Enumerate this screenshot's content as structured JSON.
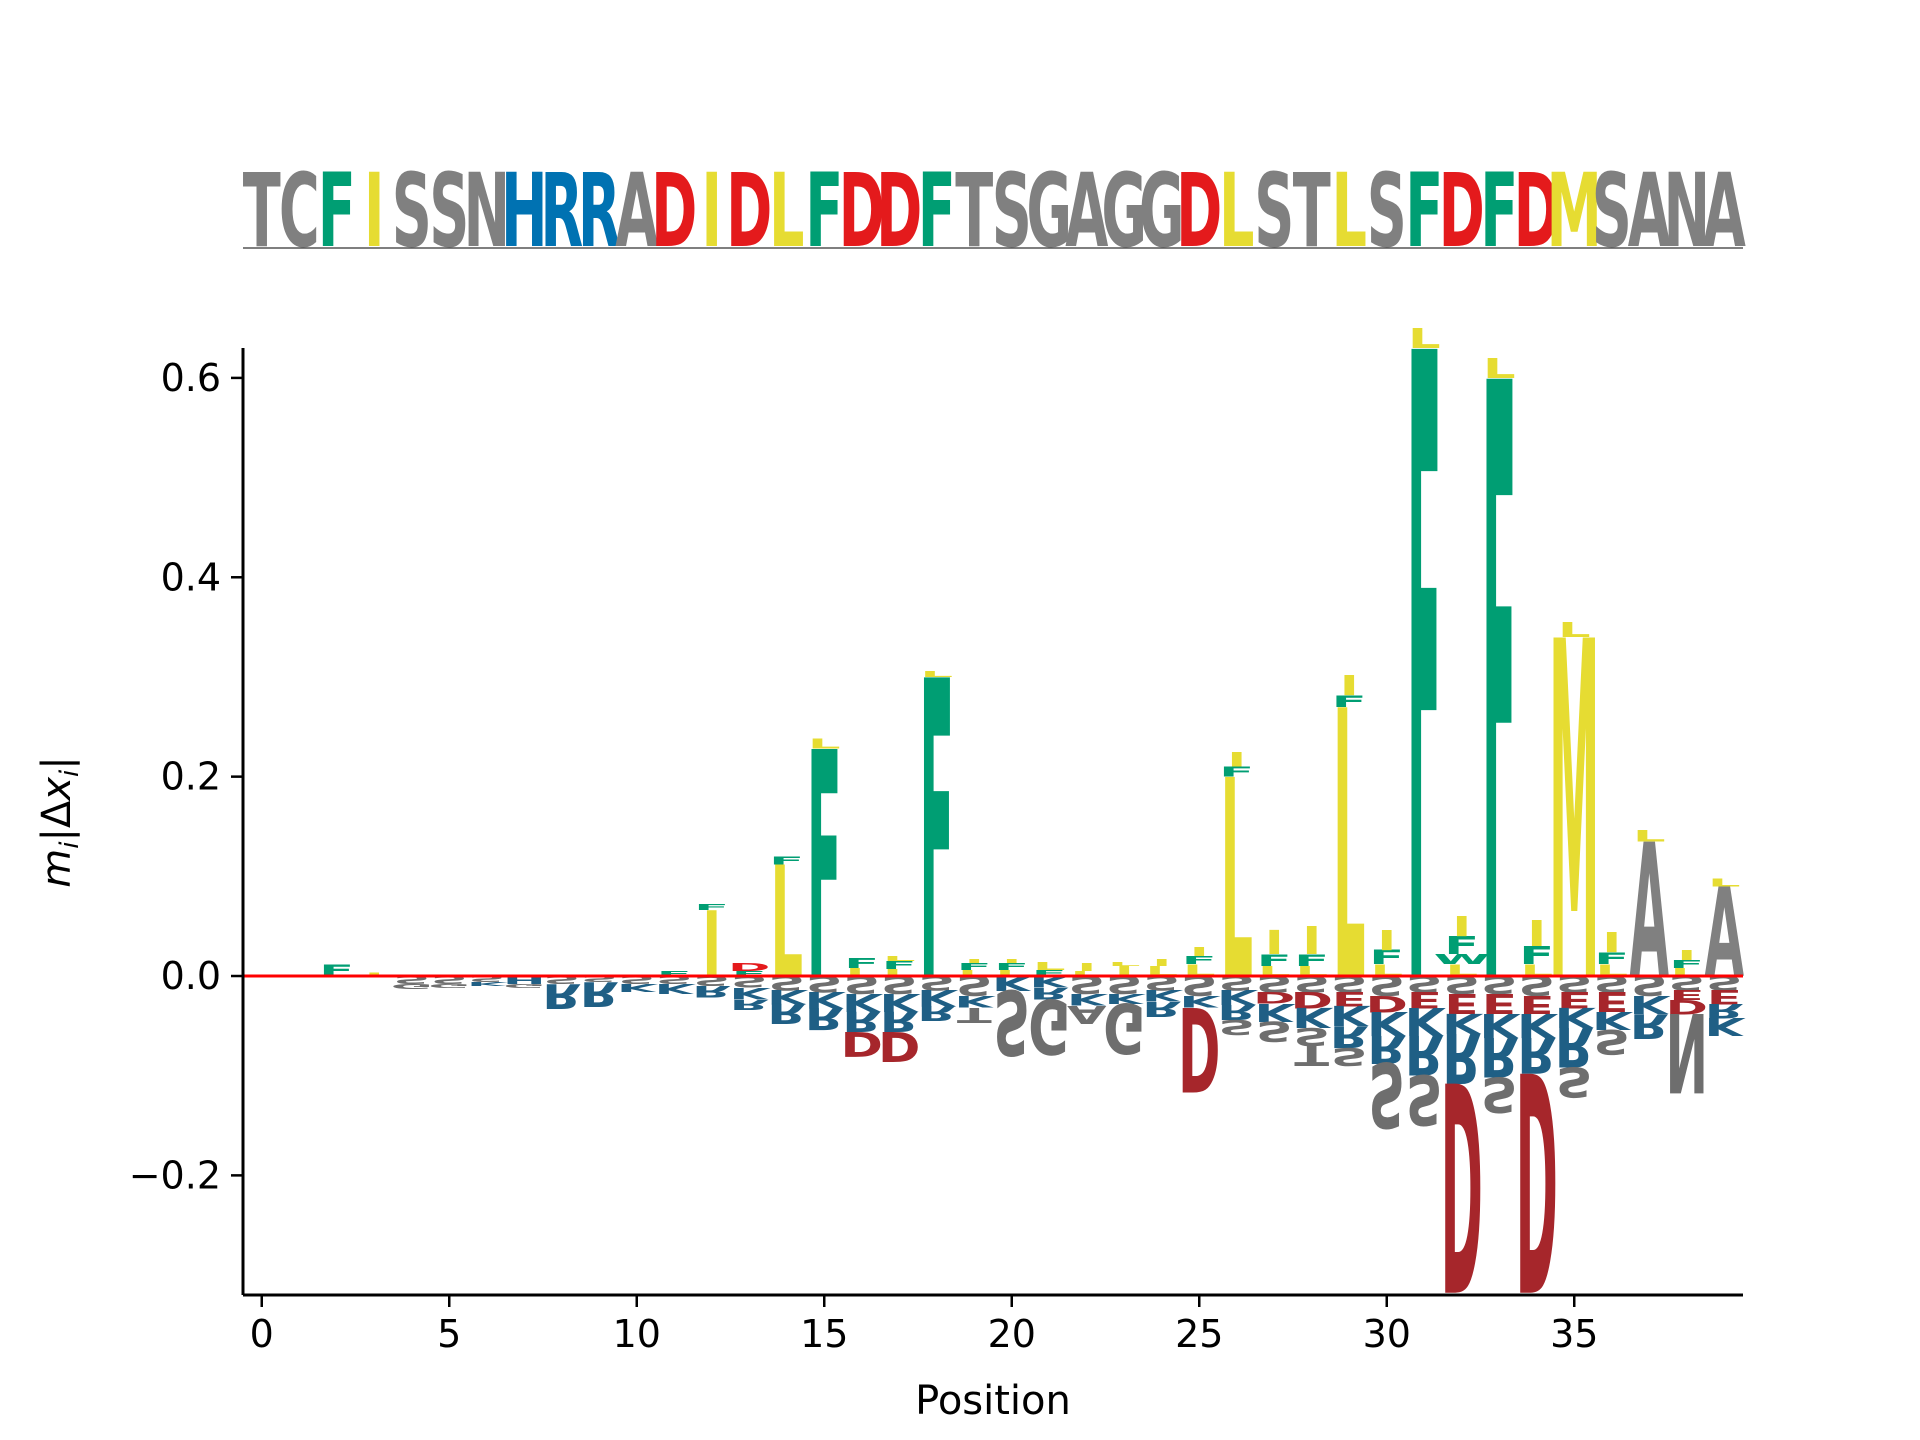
{
  "sequence": "TCFISSNHRRADIDLFDDFTSGAGGDLSTLSFDFDMSANA",
  "colors": {
    "hydrophobic_green": "#009e73",
    "hydrophobic_yellow": "#e6dc32",
    "acidic_red": "#e41a1c",
    "acidic_dark": "#a6262b",
    "basic_blue": "#0072b2",
    "basic_dark": "#1f5f85",
    "neutral_gray": "#808080",
    "neutral_dark": "#6e6e6e",
    "baseline": "#ff0000"
  },
  "letter_colors": {
    "F": "#009e73",
    "W": "#009e73",
    "Y": "#009e73",
    "I": "#e6dc32",
    "L": "#e6dc32",
    "M": "#e6dc32",
    "V": "#e6dc32",
    "D": "#e41a1c",
    "E": "#e41a1c",
    "H": "#0072b2",
    "K": "#0072b2",
    "R": "#0072b2"
  },
  "chart_data": {
    "type": "logo",
    "xlabel": "Position",
    "ylabel": "m_i|Δx_i|",
    "xlim": [
      -0.5,
      39.5
    ],
    "ylim": [
      -0.32,
      0.63
    ],
    "xticks": [
      0,
      5,
      10,
      15,
      20,
      25,
      30,
      35
    ],
    "yticks": [
      -0.2,
      0.0,
      0.2,
      0.4,
      0.6
    ],
    "ytick_labels": [
      "−0.2",
      "0.0",
      "0.2",
      "0.4",
      "0.6"
    ],
    "positive_stacks": [
      {
        "pos": 2,
        "letters": [
          [
            "F",
            0.012
          ]
        ]
      },
      {
        "pos": 3,
        "letters": [
          [
            "I",
            0.003
          ]
        ]
      },
      {
        "pos": 11,
        "letters": [
          [
            "F",
            0.005
          ]
        ]
      },
      {
        "pos": 12,
        "letters": [
          [
            "I",
            0.066
          ],
          [
            "F",
            0.006
          ]
        ]
      },
      {
        "pos": 13,
        "letters": [
          [
            "F",
            0.005
          ],
          [
            "D",
            0.008
          ]
        ]
      },
      {
        "pos": 14,
        "letters": [
          [
            "L",
            0.112
          ],
          [
            "F",
            0.008
          ]
        ]
      },
      {
        "pos": 15,
        "letters": [
          [
            "F",
            0.228
          ],
          [
            "L",
            0.01
          ]
        ]
      },
      {
        "pos": 16,
        "letters": [
          [
            "L",
            0.008
          ],
          [
            "F",
            0.01
          ]
        ]
      },
      {
        "pos": 17,
        "letters": [
          [
            "L",
            0.007
          ],
          [
            "F",
            0.008
          ],
          [
            "L",
            0.005
          ]
        ]
      },
      {
        "pos": 18,
        "letters": [
          [
            "F",
            0.3
          ],
          [
            "L",
            0.006
          ]
        ]
      },
      {
        "pos": 19,
        "letters": [
          [
            "L",
            0.006
          ],
          [
            "F",
            0.007
          ],
          [
            "I",
            0.004
          ]
        ]
      },
      {
        "pos": 20,
        "letters": [
          [
            "L",
            0.006
          ],
          [
            "F",
            0.007
          ],
          [
            "I",
            0.004
          ]
        ]
      },
      {
        "pos": 21,
        "letters": [
          [
            "F",
            0.006
          ],
          [
            "L",
            0.008
          ]
        ]
      },
      {
        "pos": 22,
        "letters": [
          [
            "L",
            0.005
          ],
          [
            "I",
            0.008
          ]
        ]
      },
      {
        "pos": 23,
        "letters": [
          [
            "I",
            0.01
          ],
          [
            "L",
            0.004
          ]
        ]
      },
      {
        "pos": 24,
        "letters": [
          [
            "L",
            0.01
          ],
          [
            "I",
            0.007
          ]
        ]
      },
      {
        "pos": 25,
        "letters": [
          [
            "L",
            0.012
          ],
          [
            "F",
            0.008
          ],
          [
            "I",
            0.009
          ]
        ]
      },
      {
        "pos": 26,
        "letters": [
          [
            "L",
            0.2
          ],
          [
            "F",
            0.01
          ],
          [
            "I",
            0.014
          ]
        ]
      },
      {
        "pos": 27,
        "letters": [
          [
            "L",
            0.01
          ],
          [
            "F",
            0.012
          ],
          [
            "I",
            0.024
          ]
        ]
      },
      {
        "pos": 28,
        "letters": [
          [
            "L",
            0.01
          ],
          [
            "F",
            0.012
          ],
          [
            "I",
            0.028
          ]
        ]
      },
      {
        "pos": 29,
        "letters": [
          [
            "L",
            0.27
          ],
          [
            "F",
            0.012
          ],
          [
            "I",
            0.02
          ]
        ]
      },
      {
        "pos": 30,
        "letters": [
          [
            "L",
            0.012
          ],
          [
            "F",
            0.014
          ],
          [
            "I",
            0.02
          ]
        ]
      },
      {
        "pos": 31,
        "letters": [
          [
            "F",
            0.63
          ],
          [
            "L",
            0.02
          ]
        ]
      },
      {
        "pos": 32,
        "letters": [
          [
            "L",
            0.012
          ],
          [
            "W",
            0.01
          ],
          [
            "F",
            0.018
          ],
          [
            "I",
            0.02
          ]
        ]
      },
      {
        "pos": 33,
        "letters": [
          [
            "F",
            0.6
          ],
          [
            "L",
            0.02
          ]
        ]
      },
      {
        "pos": 34,
        "letters": [
          [
            "L",
            0.012
          ],
          [
            "F",
            0.018
          ],
          [
            "I",
            0.026
          ]
        ]
      },
      {
        "pos": 35,
        "letters": [
          [
            "M",
            0.34
          ],
          [
            "L",
            0.015
          ]
        ]
      },
      {
        "pos": 36,
        "letters": [
          [
            "L",
            0.012
          ],
          [
            "F",
            0.012
          ],
          [
            "I",
            0.02
          ]
        ]
      },
      {
        "pos": 37,
        "letters": [
          [
            "A",
            0.135
          ],
          [
            "L",
            0.012
          ]
        ]
      },
      {
        "pos": 38,
        "letters": [
          [
            "L",
            0.008
          ],
          [
            "F",
            0.008
          ],
          [
            "I",
            0.01
          ]
        ]
      },
      {
        "pos": 39,
        "letters": [
          [
            "A",
            0.09
          ],
          [
            "L",
            0.008
          ]
        ]
      }
    ],
    "negative_stacks": [
      {
        "pos": 4,
        "letters": [
          [
            "S",
            0.008
          ],
          [
            "G",
            0.005
          ]
        ]
      },
      {
        "pos": 5,
        "letters": [
          [
            "S",
            0.008
          ],
          [
            "G",
            0.004
          ]
        ]
      },
      {
        "pos": 6,
        "letters": [
          [
            "S",
            0.006
          ],
          [
            "K",
            0.004
          ]
        ]
      },
      {
        "pos": 7,
        "letters": [
          [
            "H",
            0.008
          ],
          [
            "G",
            0.004
          ]
        ]
      },
      {
        "pos": 8,
        "letters": [
          [
            "S",
            0.008
          ],
          [
            "R",
            0.025
          ]
        ]
      },
      {
        "pos": 9,
        "letters": [
          [
            "S",
            0.006
          ],
          [
            "R",
            0.025
          ]
        ]
      },
      {
        "pos": 10,
        "letters": [
          [
            "S",
            0.008
          ],
          [
            "K",
            0.008
          ]
        ]
      },
      {
        "pos": 11,
        "letters": [
          [
            "S",
            0.008
          ],
          [
            "K",
            0.01
          ]
        ]
      },
      {
        "pos": 12,
        "letters": [
          [
            "S",
            0.01
          ],
          [
            "R",
            0.012
          ]
        ]
      },
      {
        "pos": 13,
        "letters": [
          [
            "S",
            0.012
          ],
          [
            "K",
            0.012
          ],
          [
            "R",
            0.01
          ]
        ]
      },
      {
        "pos": 14,
        "letters": [
          [
            "S",
            0.014
          ],
          [
            "K",
            0.014
          ],
          [
            "R",
            0.02
          ]
        ]
      },
      {
        "pos": 15,
        "letters": [
          [
            "S",
            0.016
          ],
          [
            "K",
            0.016
          ],
          [
            "R",
            0.022
          ]
        ]
      },
      {
        "pos": 16,
        "letters": [
          [
            "S",
            0.018
          ],
          [
            "K",
            0.018
          ],
          [
            "R",
            0.02
          ],
          [
            "D",
            0.025
          ]
        ]
      },
      {
        "pos": 17,
        "letters": [
          [
            "S",
            0.018
          ],
          [
            "K",
            0.018
          ],
          [
            "R",
            0.02
          ],
          [
            "D",
            0.03
          ]
        ]
      },
      {
        "pos": 18,
        "letters": [
          [
            "S",
            0.014
          ],
          [
            "K",
            0.016
          ],
          [
            "R",
            0.015
          ]
        ]
      },
      {
        "pos": 19,
        "letters": [
          [
            "S",
            0.02
          ],
          [
            "K",
            0.012
          ],
          [
            "T",
            0.015
          ]
        ]
      },
      {
        "pos": 20,
        "letters": [
          [
            "K",
            0.015
          ],
          [
            "S",
            0.065
          ]
        ]
      },
      {
        "pos": 21,
        "letters": [
          [
            "K",
            0.012
          ],
          [
            "R",
            0.012
          ],
          [
            "G",
            0.055
          ]
        ]
      },
      {
        "pos": 22,
        "letters": [
          [
            "S",
            0.018
          ],
          [
            "K",
            0.012
          ],
          [
            "A",
            0.018
          ]
        ]
      },
      {
        "pos": 23,
        "letters": [
          [
            "S",
            0.018
          ],
          [
            "K",
            0.01
          ],
          [
            "G",
            0.05
          ]
        ]
      },
      {
        "pos": 24,
        "letters": [
          [
            "S",
            0.014
          ],
          [
            "K",
            0.012
          ],
          [
            "R",
            0.015
          ]
        ]
      },
      {
        "pos": 25,
        "letters": [
          [
            "S",
            0.02
          ],
          [
            "K",
            0.012
          ],
          [
            "D",
            0.085
          ]
        ]
      },
      {
        "pos": 26,
        "letters": [
          [
            "S",
            0.014
          ],
          [
            "K",
            0.015
          ],
          [
            "R",
            0.015
          ],
          [
            "S",
            0.015
          ]
        ]
      },
      {
        "pos": 27,
        "letters": [
          [
            "S",
            0.016
          ],
          [
            "D",
            0.012
          ],
          [
            "K",
            0.018
          ],
          [
            "S",
            0.02
          ]
        ]
      },
      {
        "pos": 28,
        "letters": [
          [
            "S",
            0.016
          ],
          [
            "D",
            0.016
          ],
          [
            "K",
            0.02
          ],
          [
            "S",
            0.018
          ],
          [
            "T",
            0.02
          ]
        ]
      },
      {
        "pos": 29,
        "letters": [
          [
            "S",
            0.016
          ],
          [
            "E",
            0.014
          ],
          [
            "K",
            0.02
          ],
          [
            "R",
            0.022
          ],
          [
            "S",
            0.018
          ]
        ]
      },
      {
        "pos": 30,
        "letters": [
          [
            "S",
            0.02
          ],
          [
            "D",
            0.016
          ],
          [
            "K",
            0.024
          ],
          [
            "R",
            0.028
          ],
          [
            "S",
            0.065
          ]
        ]
      },
      {
        "pos": 31,
        "letters": [
          [
            "S",
            0.016
          ],
          [
            "E",
            0.016
          ],
          [
            "K",
            0.028
          ],
          [
            "R",
            0.04
          ],
          [
            "S",
            0.05
          ]
        ]
      },
      {
        "pos": 32,
        "letters": [
          [
            "S",
            0.018
          ],
          [
            "E",
            0.02
          ],
          [
            "K",
            0.02
          ],
          [
            "R",
            0.05
          ],
          [
            "D",
            0.21
          ]
        ]
      },
      {
        "pos": 33,
        "letters": [
          [
            "S",
            0.018
          ],
          [
            "E",
            0.02
          ],
          [
            "K",
            0.024
          ],
          [
            "R",
            0.04
          ],
          [
            "S",
            0.035
          ]
        ]
      },
      {
        "pos": 34,
        "letters": [
          [
            "S",
            0.02
          ],
          [
            "E",
            0.018
          ],
          [
            "K",
            0.024
          ],
          [
            "R",
            0.036
          ],
          [
            "D",
            0.22
          ]
        ]
      },
      {
        "pos": 35,
        "letters": [
          [
            "S",
            0.016
          ],
          [
            "E",
            0.016
          ],
          [
            "K",
            0.02
          ],
          [
            "R",
            0.04
          ],
          [
            "S",
            0.03
          ]
        ]
      },
      {
        "pos": 36,
        "letters": [
          [
            "S",
            0.016
          ],
          [
            "E",
            0.02
          ],
          [
            "K",
            0.018
          ],
          [
            "S",
            0.025
          ]
        ]
      },
      {
        "pos": 37,
        "letters": [
          [
            "S",
            0.02
          ],
          [
            "K",
            0.018
          ],
          [
            "R",
            0.025
          ]
        ]
      },
      {
        "pos": 38,
        "letters": [
          [
            "S",
            0.014
          ],
          [
            "E",
            0.01
          ],
          [
            "D",
            0.014
          ],
          [
            "N",
            0.08
          ]
        ]
      },
      {
        "pos": 39,
        "letters": [
          [
            "S",
            0.014
          ],
          [
            "E",
            0.014
          ],
          [
            "R",
            0.014
          ],
          [
            "K",
            0.018
          ]
        ]
      }
    ]
  }
}
